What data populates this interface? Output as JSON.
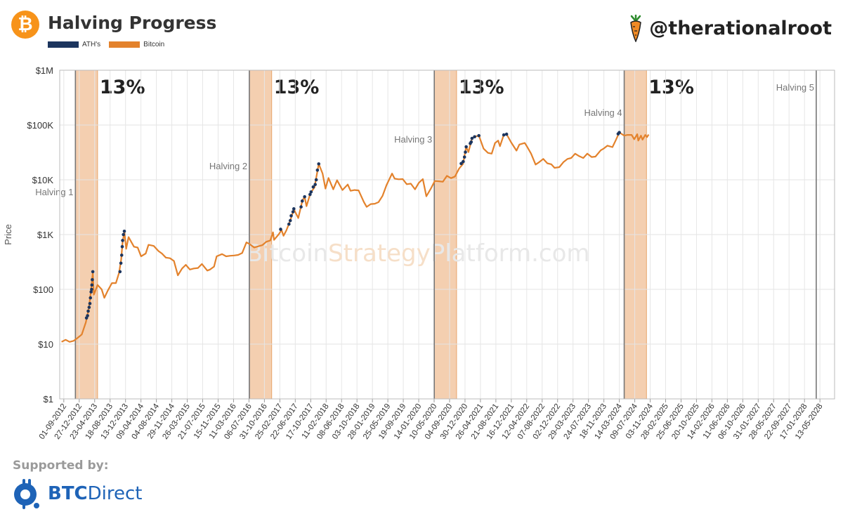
{
  "header": {
    "logo_glyph": "₿",
    "title": "Halving Progress",
    "handle": "@therationalroot"
  },
  "legend": [
    {
      "label": "ATH's",
      "color": "#1c355e"
    },
    {
      "label": "Bitcoin",
      "color": "#e3822c"
    }
  ],
  "watermark": {
    "part1": "Bitcoin",
    "part2": "Strategy",
    "part3": "Platform.com"
  },
  "footer": {
    "supported_by": "Supported by:",
    "sponsor_part1": "BTC",
    "sponsor_part2": "Direct"
  },
  "chart_data": {
    "type": "line",
    "ylabel": "Price",
    "yscale": "log",
    "ylim": [
      1,
      1000000
    ],
    "yticks": [
      "$1",
      "$10",
      "$100",
      "$1K",
      "$10K",
      "$100K",
      "$1M"
    ],
    "xlim": [
      "2012-08-01",
      "2028-09-01"
    ],
    "xticks": [
      "01-09-2012",
      "27-12-2012",
      "23-04-2013",
      "18-08-2013",
      "13-12-2013",
      "09-04-2014",
      "04-08-2014",
      "29-11-2014",
      "26-03-2015",
      "21-07-2015",
      "15-11-2015",
      "11-03-2016",
      "06-07-2016",
      "31-10-2016",
      "25-02-2017",
      "22-06-2017",
      "17-10-2017",
      "11-02-2018",
      "08-06-2018",
      "03-10-2018",
      "28-01-2019",
      "25-05-2019",
      "19-09-2019",
      "14-01-2020",
      "10-05-2020",
      "04-09-2020",
      "30-12-2020",
      "26-04-2021",
      "21-08-2021",
      "16-12-2021",
      "12-04-2022",
      "07-08-2022",
      "02-12-2022",
      "29-03-2023",
      "24-07-2023",
      "18-11-2023",
      "14-03-2024",
      "09-07-2024",
      "03-11-2024",
      "28-02-2025",
      "25-06-2025",
      "20-10-2025",
      "14-02-2026",
      "11-06-2026",
      "06-10-2026",
      "31-01-2027",
      "28-05-2027",
      "22-09-2027",
      "17-01-2028",
      "13-05-2028"
    ],
    "halvings": [
      {
        "label": "Halving 1",
        "date": "2012-11-28"
      },
      {
        "label": "Halving 2",
        "date": "2016-07-09"
      },
      {
        "label": "Halving 3",
        "date": "2020-05-11"
      },
      {
        "label": "Halving 4",
        "date": "2024-04-20"
      },
      {
        "label": "Halving 5",
        "date": "2028-04-15"
      }
    ],
    "progress_bands": [
      {
        "start": "2012-11-28",
        "end": "2013-05-15",
        "label": "13%"
      },
      {
        "start": "2016-07-09",
        "end": "2016-12-25",
        "label": "13%"
      },
      {
        "start": "2020-05-11",
        "end": "2020-10-27",
        "label": "13%"
      },
      {
        "start": "2024-04-20",
        "end": "2024-10-06",
        "label": "13%"
      }
    ],
    "series": [
      {
        "name": "Bitcoin",
        "color": "#e3822c",
        "points": [
          [
            "2012-08-15",
            11
          ],
          [
            "2012-09-15",
            12
          ],
          [
            "2012-10-15",
            11
          ],
          [
            "2012-11-15",
            11.5
          ],
          [
            "2012-12-15",
            13
          ],
          [
            "2013-01-15",
            15
          ],
          [
            "2013-02-15",
            25
          ],
          [
            "2013-03-10",
            45
          ],
          [
            "2013-03-25",
            90
          ],
          [
            "2013-04-09",
            200
          ],
          [
            "2013-04-17",
            80
          ],
          [
            "2013-05-15",
            120
          ],
          [
            "2013-06-15",
            100
          ],
          [
            "2013-07-05",
            70
          ],
          [
            "2013-08-01",
            95
          ],
          [
            "2013-09-01",
            130
          ],
          [
            "2013-10-01",
            130
          ],
          [
            "2013-10-25",
            200
          ],
          [
            "2013-11-10",
            350
          ],
          [
            "2013-11-20",
            700
          ],
          [
            "2013-12-04",
            1150
          ],
          [
            "2013-12-18",
            550
          ],
          [
            "2014-01-05",
            900
          ],
          [
            "2014-02-15",
            600
          ],
          [
            "2014-03-15",
            580
          ],
          [
            "2014-04-10",
            400
          ],
          [
            "2014-05-15",
            450
          ],
          [
            "2014-06-05",
            650
          ],
          [
            "2014-07-15",
            620
          ],
          [
            "2014-08-20",
            500
          ],
          [
            "2014-09-15",
            450
          ],
          [
            "2014-10-15",
            380
          ],
          [
            "2014-11-15",
            370
          ],
          [
            "2014-12-15",
            330
          ],
          [
            "2015-01-14",
            180
          ],
          [
            "2015-02-15",
            240
          ],
          [
            "2015-03-15",
            280
          ],
          [
            "2015-04-15",
            230
          ],
          [
            "2015-05-15",
            240
          ],
          [
            "2015-06-15",
            245
          ],
          [
            "2015-07-15",
            290
          ],
          [
            "2015-08-25",
            220
          ],
          [
            "2015-09-15",
            230
          ],
          [
            "2015-10-15",
            260
          ],
          [
            "2015-11-04",
            400
          ],
          [
            "2015-12-15",
            440
          ],
          [
            "2016-01-15",
            400
          ],
          [
            "2016-02-15",
            410
          ],
          [
            "2016-03-15",
            415
          ],
          [
            "2016-04-15",
            425
          ],
          [
            "2016-05-15",
            460
          ],
          [
            "2016-06-17",
            720
          ],
          [
            "2016-07-15",
            660
          ],
          [
            "2016-08-15",
            580
          ],
          [
            "2016-09-15",
            610
          ],
          [
            "2016-10-15",
            640
          ],
          [
            "2016-11-15",
            740
          ],
          [
            "2016-12-15",
            780
          ],
          [
            "2017-01-04",
            1100
          ],
          [
            "2017-01-12",
            800
          ],
          [
            "2017-02-15",
            1000
          ],
          [
            "2017-03-10",
            1200
          ],
          [
            "2017-03-25",
            950
          ],
          [
            "2017-04-15",
            1180
          ],
          [
            "2017-05-15",
            1800
          ],
          [
            "2017-06-11",
            2900
          ],
          [
            "2017-07-15",
            2000
          ],
          [
            "2017-08-15",
            4200
          ],
          [
            "2017-09-01",
            4900
          ],
          [
            "2017-09-15",
            3300
          ],
          [
            "2017-10-15",
            5700
          ],
          [
            "2017-11-15",
            7300
          ],
          [
            "2017-12-17",
            19500
          ],
          [
            "2018-01-15",
            13000
          ],
          [
            "2018-02-06",
            6900
          ],
          [
            "2018-03-01",
            10800
          ],
          [
            "2018-04-06",
            6700
          ],
          [
            "2018-05-05",
            9800
          ],
          [
            "2018-06-15",
            6500
          ],
          [
            "2018-07-25",
            8200
          ],
          [
            "2018-08-15",
            6300
          ],
          [
            "2018-09-15",
            6500
          ],
          [
            "2018-10-15",
            6400
          ],
          [
            "2018-11-25",
            3900
          ],
          [
            "2018-12-15",
            3200
          ],
          [
            "2019-01-15",
            3600
          ],
          [
            "2019-02-15",
            3650
          ],
          [
            "2019-03-15",
            3900
          ],
          [
            "2019-04-15",
            5100
          ],
          [
            "2019-05-15",
            8000
          ],
          [
            "2019-06-26",
            13000
          ],
          [
            "2019-07-15",
            10500
          ],
          [
            "2019-08-15",
            10200
          ],
          [
            "2019-09-15",
            10300
          ],
          [
            "2019-10-15",
            8300
          ],
          [
            "2019-11-15",
            8500
          ],
          [
            "2019-12-17",
            6700
          ],
          [
            "2020-01-15",
            8800
          ],
          [
            "2020-02-14",
            10300
          ],
          [
            "2020-03-12",
            5000
          ],
          [
            "2020-04-15",
            6900
          ],
          [
            "2020-05-15",
            9500
          ],
          [
            "2020-06-15",
            9400
          ],
          [
            "2020-07-15",
            9200
          ],
          [
            "2020-08-15",
            11800
          ],
          [
            "2020-09-15",
            10700
          ],
          [
            "2020-10-15",
            11500
          ],
          [
            "2020-11-15",
            16000
          ],
          [
            "2020-12-15",
            19500
          ],
          [
            "2021-01-08",
            40000
          ],
          [
            "2021-01-25",
            32000
          ],
          [
            "2021-02-21",
            57000
          ],
          [
            "2021-03-13",
            61000
          ],
          [
            "2021-04-14",
            64000
          ],
          [
            "2021-05-20",
            37000
          ],
          [
            "2021-06-22",
            31000
          ],
          [
            "2021-07-20",
            30000
          ],
          [
            "2021-08-15",
            47000
          ],
          [
            "2021-09-07",
            52000
          ],
          [
            "2021-09-21",
            41000
          ],
          [
            "2021-10-20",
            66000
          ],
          [
            "2021-11-10",
            68000
          ],
          [
            "2021-12-15",
            48000
          ],
          [
            "2022-01-24",
            34000
          ],
          [
            "2022-02-15",
            44000
          ],
          [
            "2022-03-28",
            47000
          ],
          [
            "2022-04-15",
            40000
          ],
          [
            "2022-05-15",
            30000
          ],
          [
            "2022-06-18",
            19000
          ],
          [
            "2022-07-15",
            21000
          ],
          [
            "2022-08-15",
            24000
          ],
          [
            "2022-09-15",
            20000
          ],
          [
            "2022-10-15",
            19200
          ],
          [
            "2022-11-09",
            16500
          ],
          [
            "2022-12-15",
            17000
          ],
          [
            "2023-01-15",
            21000
          ],
          [
            "2023-02-15",
            24000
          ],
          [
            "2023-03-15",
            25000
          ],
          [
            "2023-04-14",
            30000
          ],
          [
            "2023-05-15",
            27000
          ],
          [
            "2023-06-15",
            25000
          ],
          [
            "2023-07-15",
            30000
          ],
          [
            "2023-08-17",
            26000
          ],
          [
            "2023-09-15",
            26500
          ],
          [
            "2023-10-25",
            34500
          ],
          [
            "2023-11-15",
            37000
          ],
          [
            "2023-12-15",
            42000
          ],
          [
            "2024-01-22",
            39500
          ],
          [
            "2024-02-15",
            52000
          ],
          [
            "2024-03-14",
            73000
          ],
          [
            "2024-04-20",
            64000
          ],
          [
            "2024-05-15",
            66000
          ],
          [
            "2024-06-15",
            66000
          ],
          [
            "2024-07-05",
            55000
          ],
          [
            "2024-07-28",
            68000
          ],
          [
            "2024-08-05",
            52000
          ],
          [
            "2024-08-25",
            64000
          ],
          [
            "2024-09-06",
            54000
          ],
          [
            "2024-09-27",
            66000
          ],
          [
            "2024-10-10",
            60000
          ],
          [
            "2024-10-22",
            67000
          ]
        ]
      },
      {
        "name": "ATH's",
        "color": "#1c355e",
        "points": [
          [
            "2013-02-20",
            30
          ],
          [
            "2013-02-28",
            33
          ],
          [
            "2013-03-05",
            40
          ],
          [
            "2013-03-12",
            47
          ],
          [
            "2013-03-18",
            55
          ],
          [
            "2013-03-22",
            70
          ],
          [
            "2013-03-27",
            90
          ],
          [
            "2013-03-31",
            100
          ],
          [
            "2013-04-02",
            120
          ],
          [
            "2013-04-05",
            150
          ],
          [
            "2013-04-09",
            210
          ],
          [
            "2013-11-01",
            210
          ],
          [
            "2013-11-08",
            300
          ],
          [
            "2013-11-14",
            420
          ],
          [
            "2013-11-18",
            600
          ],
          [
            "2013-11-21",
            780
          ],
          [
            "2013-11-27",
            1000
          ],
          [
            "2013-12-04",
            1150
          ],
          [
            "2017-03-03",
            1250
          ],
          [
            "2017-05-05",
            1550
          ],
          [
            "2017-05-15",
            1800
          ],
          [
            "2017-05-22",
            2200
          ],
          [
            "2017-06-05",
            2600
          ],
          [
            "2017-06-11",
            2950
          ],
          [
            "2017-08-05",
            3200
          ],
          [
            "2017-08-14",
            4100
          ],
          [
            "2017-09-01",
            4900
          ],
          [
            "2017-10-12",
            5400
          ],
          [
            "2017-10-20",
            6000
          ],
          [
            "2017-11-05",
            7400
          ],
          [
            "2017-11-20",
            8200
          ],
          [
            "2017-11-28",
            10000
          ],
          [
            "2017-12-07",
            15000
          ],
          [
            "2017-12-17",
            19500
          ],
          [
            "2020-12-01",
            19800
          ],
          [
            "2020-12-16",
            21500
          ],
          [
            "2020-12-26",
            26000
          ],
          [
            "2021-01-02",
            32000
          ],
          [
            "2021-01-08",
            40000
          ],
          [
            "2021-02-08",
            46000
          ],
          [
            "2021-02-15",
            49000
          ],
          [
            "2021-02-21",
            57000
          ],
          [
            "2021-03-13",
            61000
          ],
          [
            "2021-04-14",
            64000
          ],
          [
            "2021-10-20",
            66000
          ],
          [
            "2021-11-10",
            68000
          ],
          [
            "2024-03-05",
            69000
          ],
          [
            "2024-03-14",
            73000
          ]
        ]
      }
    ]
  }
}
